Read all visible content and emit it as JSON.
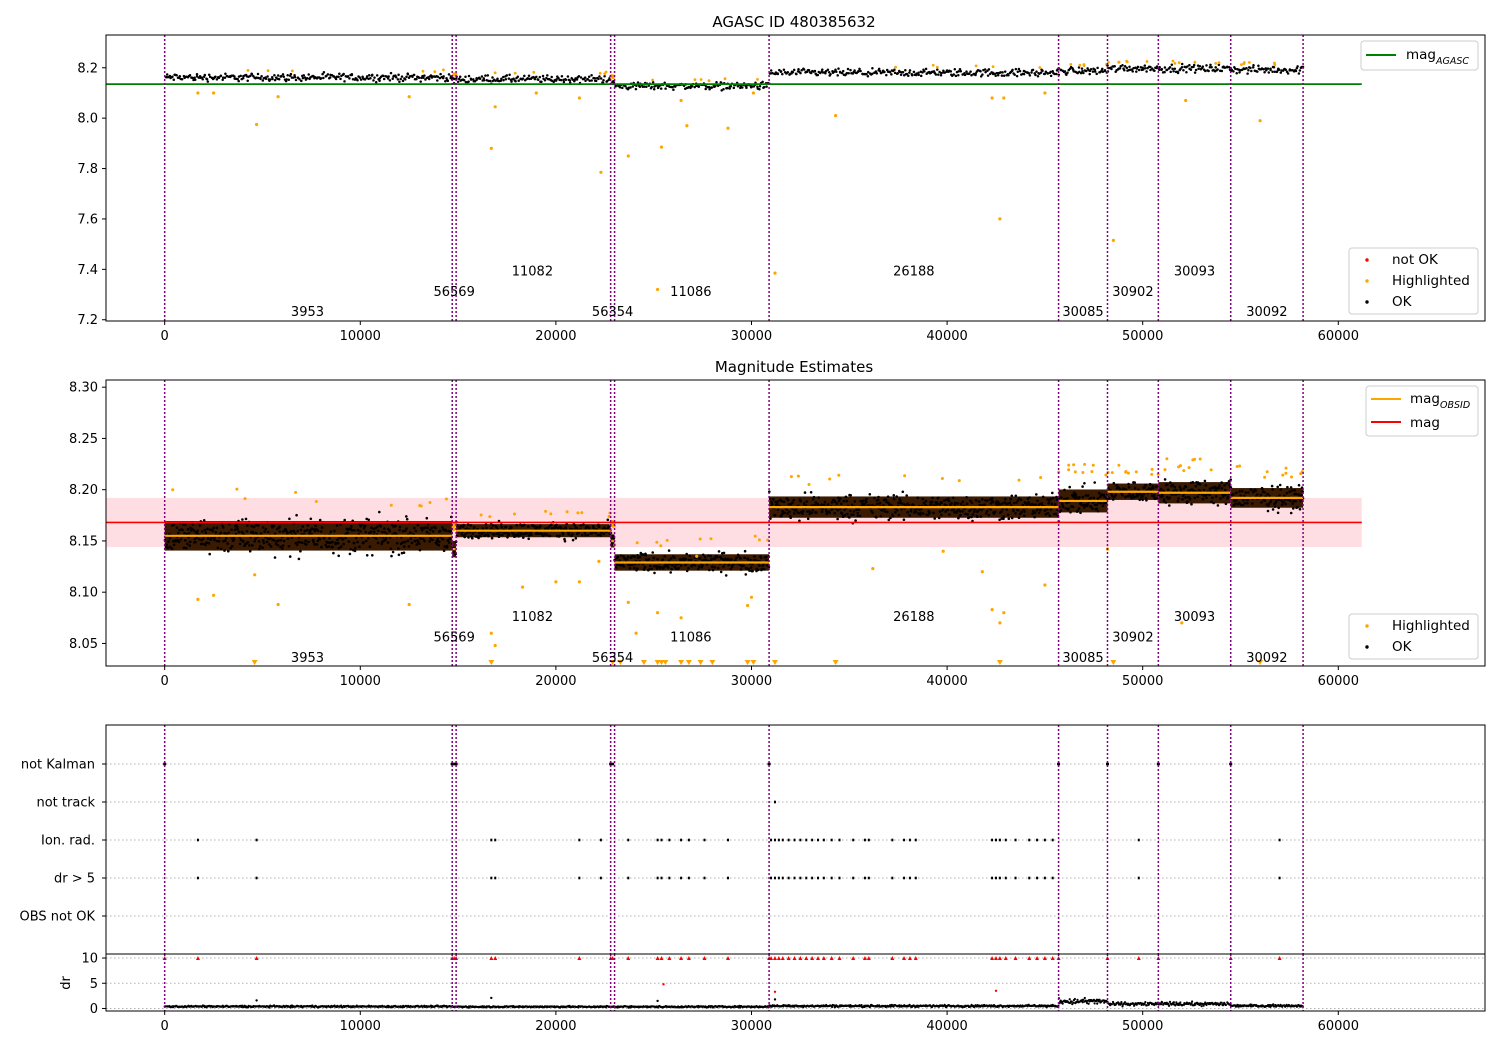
{
  "colors": {
    "ok": "#000000",
    "highlighted": "#ffa500",
    "not_ok": "#ff0000",
    "agasc_line": "#008000",
    "obsid_mag": "#ffa500",
    "mag_line": "#ff0000",
    "mag_band": "#ffb6c1",
    "obs_boundary": "#800080",
    "grid": "#b0b0b0",
    "obsid_shadow": "#3a1a00"
  },
  "chart_data": [
    {
      "type": "scatter",
      "id": "agasc",
      "title": "AGASC ID 480385632",
      "xlim": [
        -3000,
        67500
      ],
      "ylim": [
        7.195,
        8.33
      ],
      "xticks": [
        0,
        10000,
        20000,
        30000,
        40000,
        50000,
        60000
      ],
      "yticks": [
        7.2,
        7.4,
        7.6,
        7.8,
        8.0,
        8.2
      ],
      "ytick_labels": [
        "7.2",
        "7.4",
        "7.6",
        "7.8",
        "8.0",
        "8.2"
      ],
      "observations": [
        {
          "obsid": "3953",
          "start": 0,
          "end": 14700,
          "mean": 8.162,
          "label_x": 7300,
          "label_y": 7.235
        },
        {
          "obsid": "56569",
          "start": 14700,
          "end": 14900,
          "mean": 8.15,
          "label_x": 14800,
          "label_y": 7.315
        },
        {
          "obsid": "11082",
          "start": 14900,
          "end": 22800,
          "mean": 8.155,
          "label_x": 18800,
          "label_y": 7.395
        },
        {
          "obsid": "56354",
          "start": 22800,
          "end": 23000,
          "mean": 8.14,
          "label_x": 22900,
          "label_y": 7.235
        },
        {
          "obsid": "11086",
          "start": 23000,
          "end": 30900,
          "mean": 8.128,
          "label_x": 26900,
          "label_y": 7.315
        },
        {
          "obsid": "26188",
          "start": 30900,
          "end": 45700,
          "mean": 8.18,
          "label_x": 38300,
          "label_y": 7.395
        },
        {
          "obsid": "30085",
          "start": 45700,
          "end": 48200,
          "mean": 8.188,
          "label_x": 46950,
          "label_y": 7.235
        },
        {
          "obsid": "30902",
          "start": 48200,
          "end": 50800,
          "mean": 8.198,
          "label_x": 49500,
          "label_y": 7.315
        },
        {
          "obsid": "30093",
          "start": 50800,
          "end": 54500,
          "mean": 8.197,
          "label_x": 52650,
          "label_y": 7.395
        },
        {
          "obsid": "30092",
          "start": 54500,
          "end": 58200,
          "mean": 8.192,
          "label_x": 56350,
          "label_y": 7.235
        }
      ],
      "boundaries": [
        0,
        14700,
        14900,
        22800,
        23000,
        30900,
        45700,
        48200,
        50800,
        54500,
        58200
      ],
      "mag_agasc": 8.135,
      "mag_agasc_xrange": [
        -3000,
        61200
      ],
      "highlighted_points": [
        [
          1700,
          8.1
        ],
        [
          2500,
          8.1
        ],
        [
          4700,
          7.975
        ],
        [
          5800,
          8.085
        ],
        [
          12500,
          8.085
        ],
        [
          16700,
          7.88
        ],
        [
          16900,
          8.045
        ],
        [
          19000,
          8.1
        ],
        [
          21200,
          8.08
        ],
        [
          22300,
          7.785
        ],
        [
          23700,
          7.85
        ],
        [
          25200,
          7.32
        ],
        [
          25400,
          7.885
        ],
        [
          26400,
          8.07
        ],
        [
          26700,
          7.97
        ],
        [
          28800,
          7.96
        ],
        [
          30100,
          8.1
        ],
        [
          31200,
          7.385
        ],
        [
          34300,
          8.01
        ],
        [
          42300,
          8.08
        ],
        [
          42700,
          7.6
        ],
        [
          42900,
          8.08
        ],
        [
          45000,
          8.1
        ],
        [
          48500,
          7.515
        ],
        [
          52200,
          8.07
        ],
        [
          56000,
          7.99
        ]
      ],
      "legend_lines": [
        {
          "label": "mag",
          "sub": "AGASC",
          "color_key": "agasc_line"
        }
      ],
      "legend_points": [
        {
          "label": "not OK",
          "color_key": "not_ok"
        },
        {
          "label": "Highlighted",
          "color_key": "highlighted"
        },
        {
          "label": "OK",
          "color_key": "ok"
        }
      ]
    },
    {
      "type": "scatter",
      "id": "estimates",
      "title": "Magnitude Estimates",
      "xlim": [
        -3000,
        67500
      ],
      "ylim": [
        8.028,
        8.307
      ],
      "xticks": [
        0,
        10000,
        20000,
        30000,
        40000,
        50000,
        60000
      ],
      "yticks": [
        8.05,
        8.1,
        8.15,
        8.2,
        8.25,
        8.3
      ],
      "ytick_labels": [
        "8.05",
        "8.10",
        "8.15",
        "8.20",
        "8.25",
        "8.30"
      ],
      "observations": [
        {
          "obsid": "3953",
          "start": 0,
          "end": 14700,
          "mean": 8.155,
          "spread": 0.018,
          "label_x": 7300,
          "label_y": 8.037
        },
        {
          "obsid": "56569",
          "start": 14700,
          "end": 14900,
          "mean": 8.142,
          "spread": 0.01,
          "label_x": 14800,
          "label_y": 8.057
        },
        {
          "obsid": "11082",
          "start": 14900,
          "end": 22800,
          "mean": 8.16,
          "spread": 0.008,
          "label_x": 18800,
          "label_y": 8.077
        },
        {
          "obsid": "56354",
          "start": 22800,
          "end": 23000,
          "mean": 8.15,
          "spread": 0.008,
          "label_x": 22900,
          "label_y": 8.037
        },
        {
          "obsid": "11086",
          "start": 23000,
          "end": 30900,
          "mean": 8.129,
          "spread": 0.01,
          "label_x": 26900,
          "label_y": 8.057
        },
        {
          "obsid": "26188",
          "start": 30900,
          "end": 45700,
          "mean": 8.183,
          "spread": 0.013,
          "label_x": 38300,
          "label_y": 8.077
        },
        {
          "obsid": "30085",
          "start": 45700,
          "end": 48200,
          "mean": 8.189,
          "spread": 0.014,
          "label_x": 46950,
          "label_y": 8.037
        },
        {
          "obsid": "30902",
          "start": 48200,
          "end": 50800,
          "mean": 8.198,
          "spread": 0.01,
          "label_x": 49500,
          "label_y": 8.057
        },
        {
          "obsid": "30093",
          "start": 50800,
          "end": 54500,
          "mean": 8.197,
          "spread": 0.013,
          "label_x": 52650,
          "label_y": 8.077
        },
        {
          "obsid": "30092",
          "start": 54500,
          "end": 58200,
          "mean": 8.192,
          "spread": 0.012,
          "label_x": 56350,
          "label_y": 8.037
        }
      ],
      "boundaries": [
        0,
        14700,
        14900,
        22800,
        23000,
        30900,
        45700,
        48200,
        50800,
        54500,
        58200
      ],
      "mag": 8.168,
      "mag_band": [
        8.144,
        8.192
      ],
      "mag_xrange": [
        -3000,
        61200
      ],
      "highlighted_points": [
        [
          1700,
          8.093
        ],
        [
          2500,
          8.097
        ],
        [
          4600,
          8.117
        ],
        [
          5800,
          8.088
        ],
        [
          12500,
          8.088
        ],
        [
          16700,
          8.06
        ],
        [
          16900,
          8.048
        ],
        [
          18300,
          8.105
        ],
        [
          20000,
          8.11
        ],
        [
          21200,
          8.11
        ],
        [
          22200,
          8.13
        ],
        [
          23700,
          8.09
        ],
        [
          24100,
          8.06
        ],
        [
          25200,
          8.08
        ],
        [
          26400,
          8.075
        ],
        [
          27200,
          8.135
        ],
        [
          29800,
          8.087
        ],
        [
          30000,
          8.095
        ],
        [
          36200,
          8.123
        ],
        [
          39800,
          8.14
        ],
        [
          41800,
          8.12
        ],
        [
          42300,
          8.083
        ],
        [
          42700,
          8.07
        ],
        [
          42900,
          8.08
        ],
        [
          45000,
          8.107
        ],
        [
          48200,
          8.142
        ],
        [
          52000,
          8.07
        ]
      ],
      "clipped_markers_x": [
        4600,
        16700,
        22900,
        23300,
        24500,
        25200,
        25400,
        25600,
        26400,
        26800,
        27400,
        28000,
        29800,
        30100,
        31200,
        34300,
        42700,
        48500,
        56000
      ],
      "legend_lines": [
        {
          "label": "mag",
          "sub": "OBSID",
          "color_key": "obsid_mag"
        },
        {
          "label": "mag",
          "sub": "",
          "color_key": "mag_line"
        }
      ],
      "legend_points": [
        {
          "label": "Highlighted",
          "color_key": "highlighted"
        },
        {
          "label": "OK",
          "color_key": "ok"
        }
      ]
    },
    {
      "type": "scatter",
      "id": "flags",
      "title": "",
      "xlim": [
        -3000,
        67500
      ],
      "categories": [
        "not Kalman",
        "not track",
        "Ion. rad.",
        "dr > 5",
        "OBS not OK"
      ],
      "boundaries": [
        0,
        14700,
        14900,
        22800,
        23000,
        30900,
        45700,
        48200,
        50800,
        54500,
        58200
      ],
      "events": {
        "not Kalman": [
          0,
          14700,
          14800,
          14900,
          22800,
          22900,
          30900,
          45700,
          48200,
          50800,
          54500
        ],
        "not track": [
          31200
        ],
        "Ion. rad.": [
          1700,
          4700,
          16700,
          16900,
          21200,
          22300,
          23700,
          25200,
          25400,
          25800,
          26400,
          26800,
          27600,
          28800,
          31000,
          31200,
          31400,
          31600,
          31900,
          32200,
          32500,
          32800,
          33100,
          33400,
          33700,
          34100,
          34500,
          35200,
          35800,
          36000,
          37200,
          37800,
          38100,
          38400,
          42300,
          42500,
          42700,
          43000,
          43500,
          44200,
          44600,
          45000,
          45400,
          49800,
          57000
        ],
        "dr > 5": [
          1700,
          4700,
          16700,
          16900,
          21200,
          22300,
          23700,
          25200,
          25400,
          25800,
          26400,
          26800,
          27600,
          28800,
          31000,
          31200,
          31400,
          31600,
          31900,
          32200,
          32500,
          32800,
          33100,
          33400,
          33700,
          34100,
          34500,
          35200,
          35800,
          36000,
          37200,
          37800,
          38100,
          38400,
          42300,
          42500,
          42700,
          43000,
          43500,
          44200,
          44600,
          45000,
          45400,
          49800,
          57000
        ],
        "OBS not OK": []
      }
    },
    {
      "type": "scatter",
      "id": "dr",
      "title": "",
      "ylabel": "dr",
      "xlim": [
        -3000,
        67500
      ],
      "ylim": [
        -0.5,
        10.8
      ],
      "xticks": [
        0,
        10000,
        20000,
        30000,
        40000,
        50000,
        60000
      ],
      "xtick_labels": [
        "0",
        "10000",
        "20000",
        "30000",
        "40000",
        "50000",
        "60000"
      ],
      "yticks": [
        0,
        5,
        10
      ],
      "ytick_labels": [
        "0",
        "5",
        "10"
      ],
      "boundaries": [
        0,
        14700,
        14900,
        22800,
        23000,
        30900,
        45700,
        48200,
        50800,
        54500,
        58200
      ],
      "segments": [
        {
          "start": 0,
          "end": 14700,
          "mean": 0.4
        },
        {
          "start": 14700,
          "end": 23000,
          "mean": 0.35
        },
        {
          "start": 23000,
          "end": 30900,
          "mean": 0.35
        },
        {
          "start": 30900,
          "end": 45700,
          "mean": 0.5
        },
        {
          "start": 45700,
          "end": 48200,
          "mean": 1.4
        },
        {
          "start": 48200,
          "end": 54500,
          "mean": 0.9
        },
        {
          "start": 54500,
          "end": 58200,
          "mean": 0.55
        }
      ],
      "red_at_10": [
        0,
        1700,
        4700,
        14700,
        14800,
        14900,
        16700,
        16900,
        21200,
        22800,
        22900,
        23700,
        25200,
        25400,
        25800,
        26400,
        26800,
        27600,
        28800,
        30900,
        31000,
        31200,
        31400,
        31600,
        31900,
        32200,
        32500,
        32800,
        33100,
        33400,
        33700,
        34100,
        34500,
        35200,
        35800,
        36000,
        37200,
        37800,
        38100,
        38400,
        42300,
        42500,
        42700,
        43000,
        43500,
        44200,
        44600,
        45000,
        45400,
        45700,
        48200,
        49800,
        50800,
        54500,
        57000
      ],
      "red_other": [
        [
          31200,
          3.3
        ],
        [
          42500,
          3.5
        ],
        [
          25500,
          4.8
        ]
      ],
      "black_outliers": [
        [
          4700,
          1.6
        ],
        [
          16700,
          2.1
        ],
        [
          25200,
          1.5
        ],
        [
          31200,
          1.8
        ]
      ]
    }
  ]
}
